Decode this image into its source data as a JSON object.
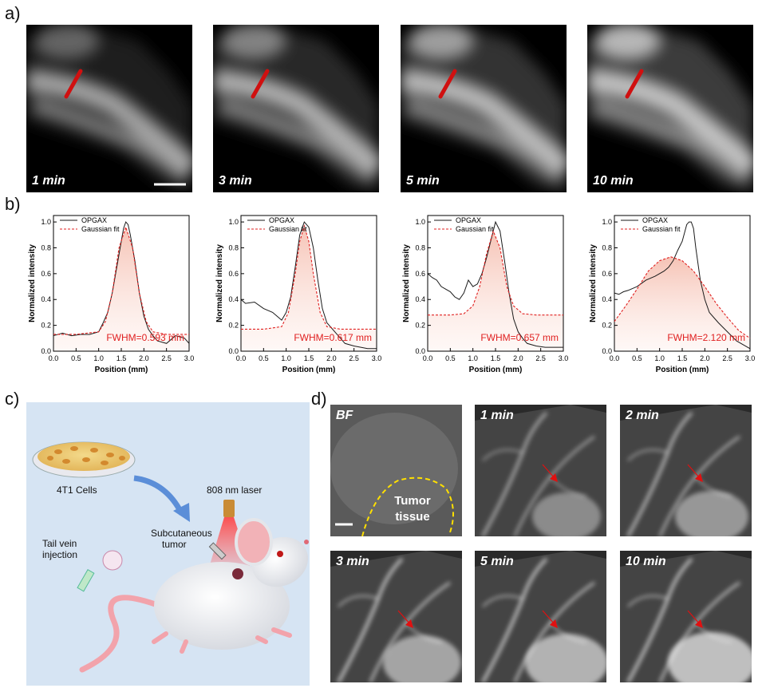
{
  "panel_labels": {
    "a": "a)",
    "b": "b)",
    "c": "c)",
    "d": "d)"
  },
  "panel_a": {
    "tiles": [
      {
        "label": "1 min"
      },
      {
        "label": "3 min"
      },
      {
        "label": "5 min"
      },
      {
        "label": "10 min"
      }
    ],
    "colors": {
      "marker": "#d01010",
      "scalebar": "#ffffff"
    }
  },
  "chart_data": [
    {
      "type": "line",
      "title": "",
      "xlabel": "Position (mm)",
      "ylabel": "Normalized intensity",
      "xlim": [
        0.0,
        3.0
      ],
      "ylim": [
        0.0,
        1.05
      ],
      "xticks": [
        "0.0",
        "0.5",
        "1.0",
        "1.5",
        "2.0",
        "2.5",
        "3.0"
      ],
      "yticks": [
        "0.0",
        "0.2",
        "0.4",
        "0.6",
        "0.8",
        "1.0"
      ],
      "legend": [
        "OPGAX",
        "Gaussian fit"
      ],
      "annotation": "FWHM=0.593 mm",
      "series": [
        {
          "name": "OPGAX",
          "x": [
            0.0,
            0.2,
            0.4,
            0.6,
            0.8,
            1.0,
            1.1,
            1.2,
            1.3,
            1.4,
            1.5,
            1.55,
            1.6,
            1.65,
            1.7,
            1.8,
            1.9,
            2.0,
            2.1,
            2.2,
            2.3,
            2.5,
            2.7,
            2.9,
            3.0
          ],
          "y": [
            0.12,
            0.14,
            0.12,
            0.13,
            0.13,
            0.15,
            0.22,
            0.3,
            0.45,
            0.65,
            0.85,
            0.95,
            1.0,
            0.98,
            0.9,
            0.7,
            0.45,
            0.27,
            0.17,
            0.12,
            0.08,
            0.06,
            0.12,
            0.1,
            0.06
          ]
        },
        {
          "name": "Gaussian fit",
          "x": [
            0.0,
            0.5,
            1.0,
            1.15,
            1.3,
            1.45,
            1.6,
            1.75,
            1.9,
            2.05,
            2.2,
            2.5,
            3.0
          ],
          "y": [
            0.13,
            0.13,
            0.15,
            0.23,
            0.45,
            0.8,
            0.96,
            0.8,
            0.45,
            0.23,
            0.15,
            0.13,
            0.13
          ]
        }
      ]
    },
    {
      "type": "line",
      "title": "",
      "xlabel": "Position (mm)",
      "ylabel": "Normalized intensity",
      "xlim": [
        0.0,
        3.0
      ],
      "ylim": [
        0.0,
        1.05
      ],
      "xticks": [
        "0.0",
        "0.5",
        "1.0",
        "1.5",
        "2.0",
        "2.5",
        "3.0"
      ],
      "yticks": [
        "0.0",
        "0.2",
        "0.4",
        "0.6",
        "0.8",
        "1.0"
      ],
      "legend": [
        "OPGAX",
        "Gaussian fit"
      ],
      "annotation": "FWHM=0.617 mm",
      "series": [
        {
          "name": "OPGAX",
          "x": [
            0.0,
            0.1,
            0.3,
            0.5,
            0.7,
            0.8,
            0.9,
            1.0,
            1.1,
            1.2,
            1.3,
            1.4,
            1.5,
            1.6,
            1.7,
            1.8,
            1.9,
            2.0,
            2.1,
            2.3,
            2.5,
            2.8,
            3.0
          ],
          "y": [
            0.4,
            0.37,
            0.38,
            0.33,
            0.3,
            0.27,
            0.24,
            0.3,
            0.42,
            0.65,
            0.9,
            1.0,
            0.96,
            0.8,
            0.55,
            0.33,
            0.22,
            0.18,
            0.14,
            0.06,
            0.04,
            0.02,
            0.02
          ]
        },
        {
          "name": "Gaussian fit",
          "x": [
            0.0,
            0.5,
            0.9,
            1.05,
            1.2,
            1.3,
            1.4,
            1.5,
            1.6,
            1.75,
            1.9,
            2.2,
            3.0
          ],
          "y": [
            0.17,
            0.17,
            0.19,
            0.3,
            0.6,
            0.85,
            0.97,
            0.85,
            0.6,
            0.3,
            0.19,
            0.17,
            0.17
          ]
        }
      ]
    },
    {
      "type": "line",
      "title": "",
      "xlabel": "Position (mm)",
      "ylabel": "Normalized intensity",
      "xlim": [
        0.0,
        3.0
      ],
      "ylim": [
        0.0,
        1.05
      ],
      "xticks": [
        "0.0",
        "0.5",
        "1.0",
        "1.5",
        "2.0",
        "2.5",
        "3.0"
      ],
      "yticks": [
        "0.0",
        "0.2",
        "0.4",
        "0.6",
        "0.8",
        "1.0"
      ],
      "legend": [
        "OPGAX",
        "Gaussian fit"
      ],
      "annotation": "FWHM=0.657 mm",
      "series": [
        {
          "name": "OPGAX",
          "x": [
            0.0,
            0.1,
            0.2,
            0.3,
            0.4,
            0.5,
            0.6,
            0.7,
            0.8,
            0.9,
            1.0,
            1.1,
            1.2,
            1.3,
            1.4,
            1.5,
            1.6,
            1.7,
            1.8,
            1.9,
            2.0,
            2.1,
            2.2,
            2.4,
            2.6,
            2.8,
            3.0
          ],
          "y": [
            0.6,
            0.57,
            0.55,
            0.5,
            0.48,
            0.46,
            0.42,
            0.4,
            0.45,
            0.55,
            0.5,
            0.52,
            0.6,
            0.72,
            0.86,
            1.0,
            0.93,
            0.7,
            0.45,
            0.25,
            0.15,
            0.1,
            0.06,
            0.04,
            0.03,
            0.03,
            0.03
          ]
        },
        {
          "name": "Gaussian fit",
          "x": [
            0.0,
            0.5,
            0.8,
            1.0,
            1.15,
            1.3,
            1.45,
            1.6,
            1.75,
            1.9,
            2.1,
            2.4,
            3.0
          ],
          "y": [
            0.28,
            0.28,
            0.29,
            0.35,
            0.5,
            0.75,
            0.93,
            0.8,
            0.5,
            0.35,
            0.29,
            0.28,
            0.28
          ]
        }
      ]
    },
    {
      "type": "line",
      "title": "",
      "xlabel": "Position (mm)",
      "ylabel": "Normalized intensity",
      "xlim": [
        0.0,
        3.0
      ],
      "ylim": [
        0.0,
        1.05
      ],
      "xticks": [
        "0.0",
        "0.5",
        "1.0",
        "1.5",
        "2.0",
        "2.5",
        "3.0"
      ],
      "yticks": [
        "0.0",
        "0.2",
        "0.4",
        "0.6",
        "0.8",
        "1.0"
      ],
      "legend": [
        "OPGAX",
        "Gaussian fit"
      ],
      "annotation": "FWHM=2.120 mm",
      "series": [
        {
          "name": "OPGAX",
          "x": [
            0.0,
            0.1,
            0.2,
            0.3,
            0.5,
            0.7,
            0.9,
            1.0,
            1.1,
            1.2,
            1.3,
            1.4,
            1.5,
            1.6,
            1.65,
            1.7,
            1.75,
            1.8,
            1.9,
            2.0,
            2.1,
            2.3,
            2.5,
            2.7,
            2.9,
            3.0
          ],
          "y": [
            0.45,
            0.44,
            0.46,
            0.47,
            0.5,
            0.55,
            0.58,
            0.6,
            0.62,
            0.65,
            0.7,
            0.78,
            0.85,
            0.98,
            1.0,
            1.0,
            0.95,
            0.8,
            0.55,
            0.4,
            0.3,
            0.22,
            0.15,
            0.08,
            0.04,
            0.02
          ]
        },
        {
          "name": "Gaussian fit",
          "x": [
            0.0,
            0.25,
            0.5,
            0.75,
            1.0,
            1.25,
            1.5,
            1.75,
            2.0,
            2.25,
            2.5,
            2.75,
            3.0
          ],
          "y": [
            0.23,
            0.35,
            0.48,
            0.62,
            0.7,
            0.73,
            0.7,
            0.62,
            0.5,
            0.37,
            0.26,
            0.16,
            0.1
          ]
        }
      ]
    }
  ],
  "panel_c": {
    "cells_label": "4T1 Cells",
    "laser_label": "808 nm laser",
    "tumor_label_1": "Subcutaneous",
    "tumor_label_2": "tumor",
    "injection_label_1": "Tail vein",
    "injection_label_2": "injection"
  },
  "panel_d": {
    "tiles": [
      {
        "label": "BF"
      },
      {
        "label": "1 min"
      },
      {
        "label": "2 min"
      },
      {
        "label": "3 min"
      },
      {
        "label": "5 min"
      },
      {
        "label": "10 min"
      }
    ],
    "tumor_label_1": "Tumor",
    "tumor_label_2": "tissue"
  }
}
